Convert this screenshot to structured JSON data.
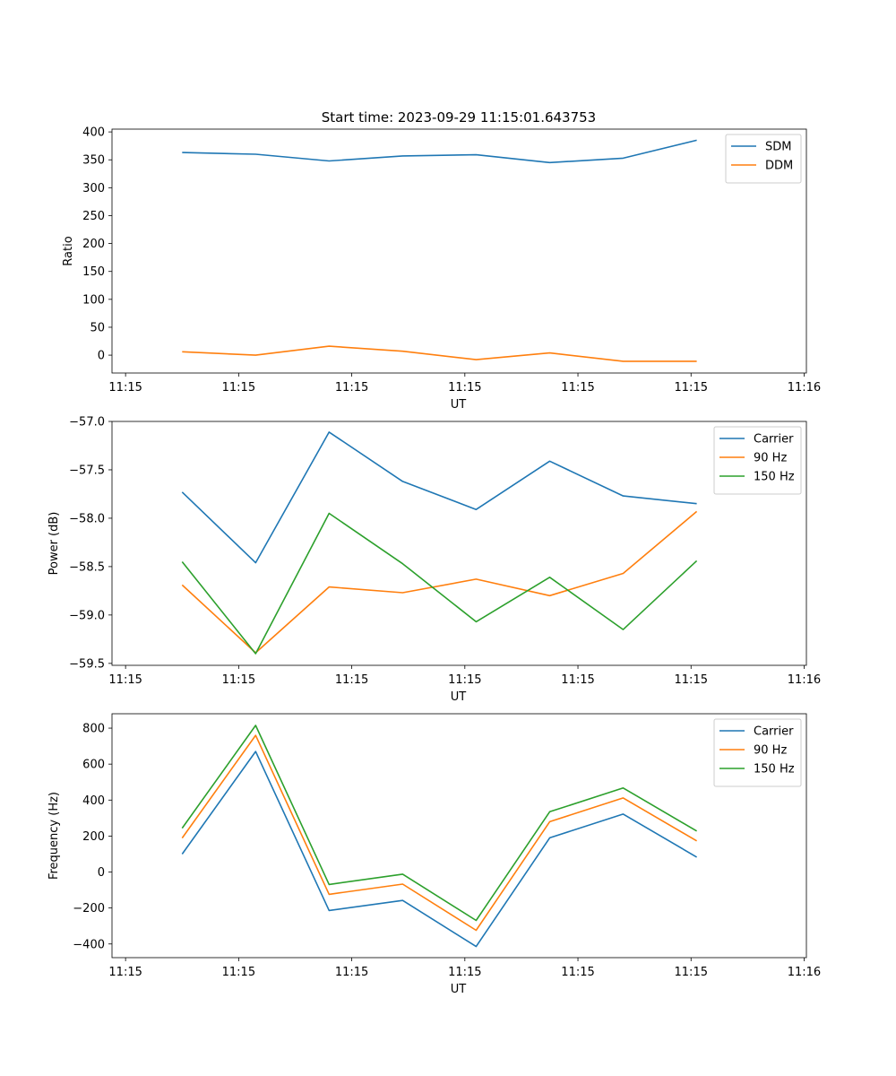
{
  "figure_title": "Start time: 2023-09-29 11:15:01.643753",
  "chart_data": [
    {
      "type": "line",
      "xlabel": "UT",
      "ylabel": "Ratio",
      "x_tick_labels": [
        "11:15",
        "11:15",
        "11:15",
        "11:15",
        "11:15",
        "11:15",
        "11:16"
      ],
      "x_tick_values": [
        0,
        5,
        10,
        15,
        20,
        25,
        30
      ],
      "xlim": [
        -0.6,
        30.1
      ],
      "ylim": [
        -32,
        405
      ],
      "y_ticks": [
        0,
        50,
        100,
        150,
        200,
        250,
        300,
        350,
        400
      ],
      "y_tick_labels": [
        "0",
        "50",
        "100",
        "150",
        "200",
        "250",
        "300",
        "350",
        "400"
      ],
      "x": [
        2.5,
        5.75,
        9.0,
        12.25,
        15.5,
        18.75,
        22.0,
        25.25
      ],
      "legend_position": "top-right",
      "series": [
        {
          "name": "SDM",
          "color": "#1f77b4",
          "values": [
            363,
            360,
            348,
            357,
            359,
            345,
            353,
            385
          ]
        },
        {
          "name": "DDM",
          "color": "#ff7f0e",
          "values": [
            6,
            0,
            16,
            7,
            -8,
            4,
            -11,
            -11
          ]
        }
      ]
    },
    {
      "type": "line",
      "xlabel": "UT",
      "ylabel": "Power (dB)",
      "x_tick_labels": [
        "11:15",
        "11:15",
        "11:15",
        "11:15",
        "11:15",
        "11:15",
        "11:16"
      ],
      "x_tick_values": [
        0,
        5,
        10,
        15,
        20,
        25,
        30
      ],
      "xlim": [
        -0.6,
        30.1
      ],
      "ylim": [
        -59.52,
        -57.0
      ],
      "y_ticks": [
        -59.5,
        -59.0,
        -58.5,
        -58.0,
        -57.5,
        -57.0
      ],
      "y_tick_labels": [
        "−59.5",
        "−59.0",
        "−58.5",
        "−58.0",
        "−57.5",
        "−57.0"
      ],
      "x": [
        2.5,
        5.75,
        9.0,
        12.25,
        15.5,
        18.75,
        22.0,
        25.25
      ],
      "legend_position": "top-right",
      "series": [
        {
          "name": "Carrier",
          "color": "#1f77b4",
          "values": [
            -57.73,
            -58.46,
            -57.11,
            -57.62,
            -57.91,
            -57.41,
            -57.77,
            -57.85
          ]
        },
        {
          "name": "90 Hz",
          "color": "#ff7f0e",
          "values": [
            -58.69,
            -59.39,
            -58.71,
            -58.77,
            -58.63,
            -58.8,
            -58.57,
            -57.93
          ]
        },
        {
          "name": "150 Hz",
          "color": "#2ca02c",
          "values": [
            -58.45,
            -59.4,
            -57.95,
            -58.47,
            -59.07,
            -58.61,
            -59.15,
            -58.44
          ]
        }
      ]
    },
    {
      "type": "line",
      "xlabel": "UT",
      "ylabel": "Frequency (Hz)",
      "x_tick_labels": [
        "11:15",
        "11:15",
        "11:15",
        "11:15",
        "11:15",
        "11:15",
        "11:16"
      ],
      "x_tick_values": [
        0,
        5,
        10,
        15,
        20,
        25,
        30
      ],
      "xlim": [
        -0.6,
        30.1
      ],
      "ylim": [
        -476,
        880
      ],
      "y_ticks": [
        -400,
        -200,
        0,
        200,
        400,
        600,
        800
      ],
      "y_tick_labels": [
        "−400",
        "−200",
        "0",
        "200",
        "400",
        "600",
        "800"
      ],
      "x": [
        2.5,
        5.75,
        9.0,
        12.25,
        15.5,
        18.75,
        22.0,
        25.25
      ],
      "legend_position": "top-right",
      "series": [
        {
          "name": "Carrier",
          "color": "#1f77b4",
          "values": [
            100,
            670,
            -214,
            -158,
            -414,
            190,
            322,
            83
          ]
        },
        {
          "name": "90 Hz",
          "color": "#ff7f0e",
          "values": [
            189,
            760,
            -124,
            -67,
            -324,
            280,
            412,
            173
          ]
        },
        {
          "name": "150 Hz",
          "color": "#2ca02c",
          "values": [
            244,
            815,
            -69,
            -12,
            -269,
            335,
            467,
            228
          ]
        }
      ]
    }
  ]
}
